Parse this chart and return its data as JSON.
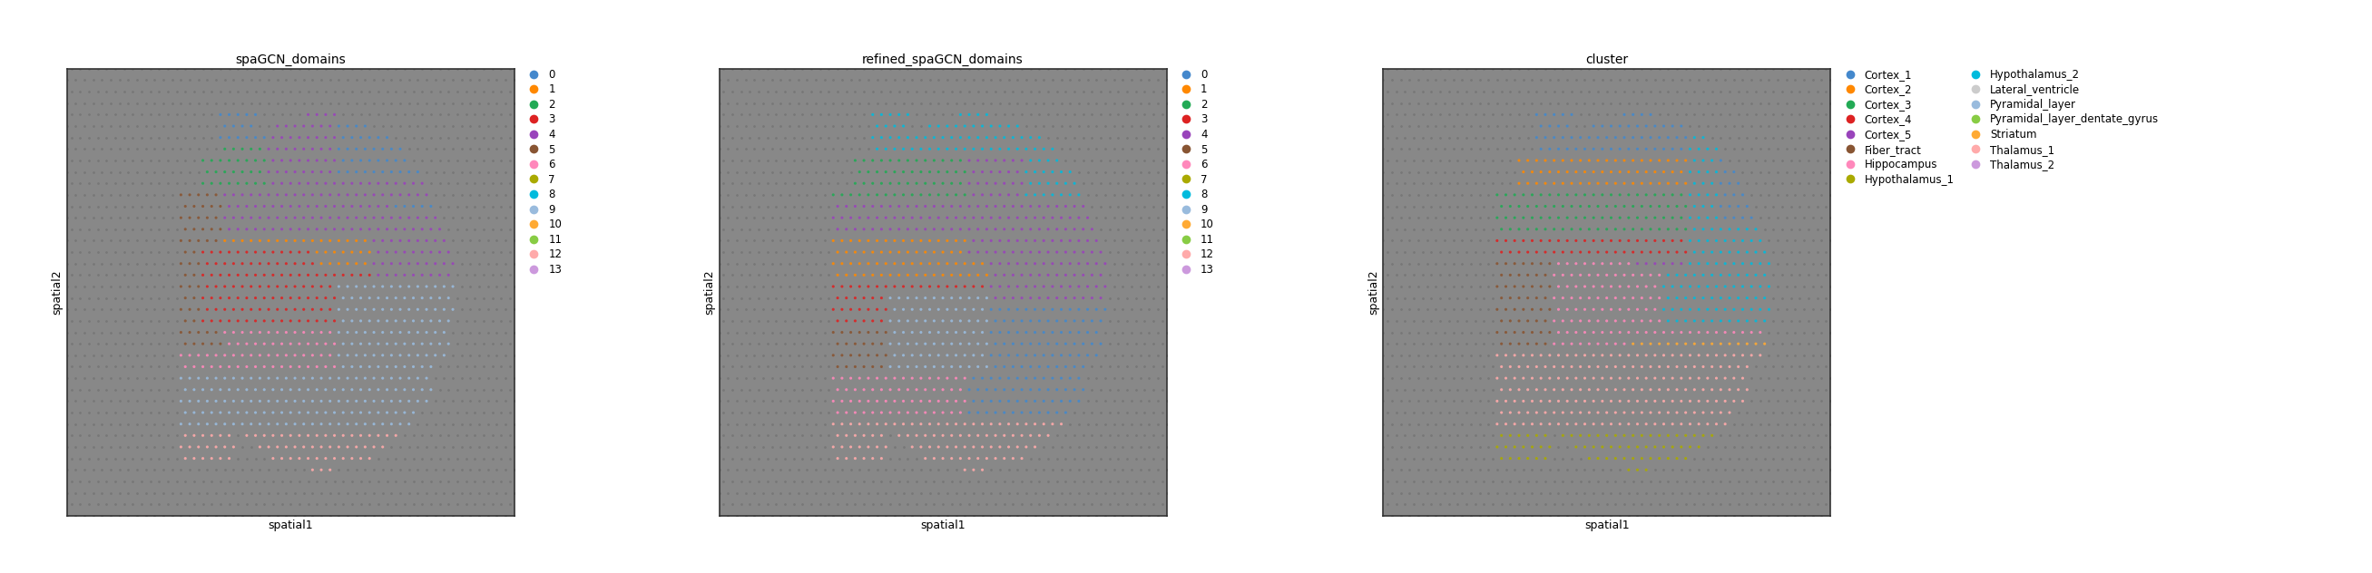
{
  "panel1_title": "spaGCN_domains",
  "panel2_title": "refined_spaGCN_domains",
  "panel3_title": "cluster",
  "xlabel": "spatial1",
  "ylabel": "spatial2",
  "panel12_legend_labels": [
    "0",
    "1",
    "2",
    "3",
    "4",
    "5",
    "6",
    "7",
    "8",
    "9",
    "10",
    "11",
    "12",
    "13"
  ],
  "panel12_legend_colors": [
    "#4488cc",
    "#ff8800",
    "#22aa55",
    "#dd2222",
    "#9944bb",
    "#885533",
    "#ff88bb",
    "#aaaa00",
    "#00bbdd",
    "#99bbdd",
    "#ffaa33",
    "#88cc44",
    "#ffaaaa",
    "#cc99dd"
  ],
  "panel3_legend_labels": [
    "Cortex_1",
    "Cortex_2",
    "Cortex_3",
    "Cortex_4",
    "Cortex_5",
    "Fiber_tract",
    "Hippocampus",
    "Hypothalamus_1",
    "Hypothalamus_2",
    "Lateral_ventricle",
    "Pyramidal_layer",
    "Pyramidal_layer_dentate_gyrus",
    "Striatum",
    "Thalamus_1",
    "Thalamus_2"
  ],
  "panel3_legend_colors": [
    "#4488cc",
    "#ff8800",
    "#22aa55",
    "#dd2222",
    "#9944bb",
    "#885533",
    "#ff88bb",
    "#aaaa00",
    "#00bbdd",
    "#cccccc",
    "#99bbdd",
    "#88cc44",
    "#ffaa33",
    "#ffaaaa",
    "#cc99dd"
  ],
  "bg_panel_color": "#888888",
  "fig_width": 26.14,
  "fig_height": 6.32
}
